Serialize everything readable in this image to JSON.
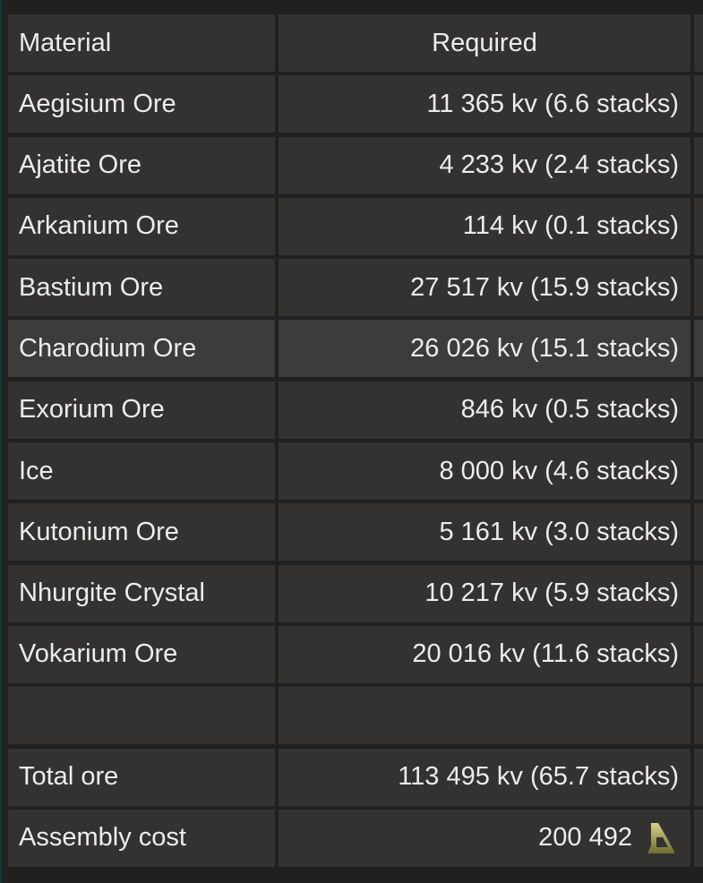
{
  "header": {
    "material": "Material",
    "required": "Required"
  },
  "rows": [
    {
      "material": "Aegisium Ore",
      "required": "11 365 kv (6.6 stacks)"
    },
    {
      "material": "Ajatite Ore",
      "required": "4 233 kv (2.4 stacks)"
    },
    {
      "material": "Arkanium Ore",
      "required": "114 kv (0.1 stacks)"
    },
    {
      "material": "Bastium Ore",
      "required": "27 517 kv (15.9 stacks)"
    },
    {
      "material": "Charodium Ore",
      "required": "26 026 kv (15.1 stacks)",
      "highlighted": true
    },
    {
      "material": "Exorium Ore",
      "required": "846 kv (0.5 stacks)"
    },
    {
      "material": "Ice",
      "required": "8 000 kv (4.6 stacks)"
    },
    {
      "material": "Kutonium Ore",
      "required": "5 161 kv (3.0 stacks)"
    },
    {
      "material": "Nhurgite Crystal",
      "required": "10 217 kv (5.9 stacks)"
    },
    {
      "material": "Vokarium Ore",
      "required": "20 016 kv (11.6 stacks)"
    }
  ],
  "total": {
    "label": "Total ore",
    "value": "113 495 kv (65.7 stacks)"
  },
  "assembly": {
    "label": "Assembly cost",
    "value": "200 492",
    "icon": "currency-icon",
    "icon_color": "#a8a45a"
  }
}
